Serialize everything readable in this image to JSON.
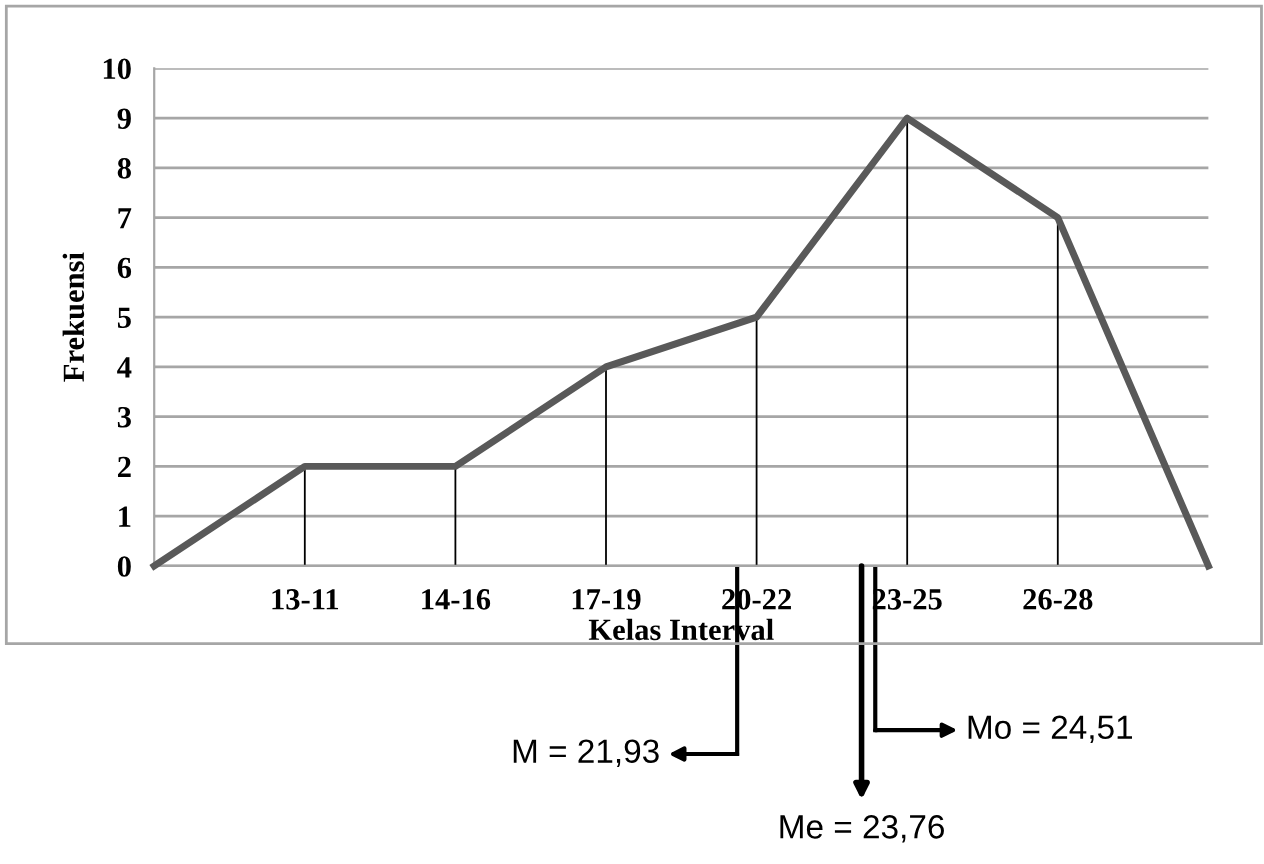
{
  "chart_data": {
    "type": "line",
    "xlabel": "Kelas Interval",
    "ylabel": "Frekuensi",
    "categories": [
      null,
      "13-11",
      "14-16",
      "17-19",
      "20-22",
      "23-25",
      "26-28",
      null
    ],
    "ylim": [
      0,
      10
    ],
    "yticks": [
      0,
      1,
      2,
      3,
      4,
      5,
      6,
      7,
      8,
      9,
      10
    ],
    "grid": "y",
    "legend": false,
    "marker": "none",
    "line_style": "solid",
    "series": [
      {
        "color": "#595959",
        "values": [
          0,
          2,
          2,
          4,
          5,
          9,
          7,
          0
        ]
      },
      {
        "type": "bar",
        "color": "#000000",
        "values": [
          null,
          2,
          2,
          4,
          5,
          9,
          7,
          null
        ]
      }
    ],
    "annotations": [
      "M = 21,93",
      "Me = 23,76",
      "Mo = 24,51"
    ]
  }
}
